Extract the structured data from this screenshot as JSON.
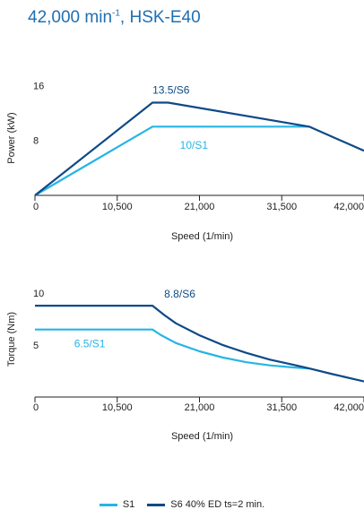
{
  "title": {
    "prefix": "42,000 min",
    "superscript": "-1",
    "suffix": ", HSK-E40"
  },
  "colors": {
    "title": "#1f6fb2",
    "s1": "#26b5e6",
    "s6": "#0d4a86",
    "axis": "#222222"
  },
  "legend": [
    {
      "key": "s1",
      "label": "S1"
    },
    {
      "key": "s6",
      "label": "S6 40% ED ts=2 min."
    }
  ],
  "chart_data": [
    {
      "type": "line",
      "ylabel": "Power (kW)",
      "xlabel": "Speed (1/min)",
      "xlim": [
        0,
        42000
      ],
      "ylim": [
        0,
        18
      ],
      "xticks": [
        0,
        10500,
        21000,
        31500,
        42000
      ],
      "xtick_labels": [
        "0",
        "10,500",
        "21,000",
        "31,500",
        "42,000"
      ],
      "yticks": [
        8,
        16
      ],
      "ytick_labels": [
        "8",
        "16"
      ],
      "grid": false,
      "series": [
        {
          "key": "s1",
          "points": [
            [
              0,
              0
            ],
            [
              15000,
              10
            ],
            [
              35000,
              10
            ]
          ],
          "annotation": {
            "text": "10/S1",
            "at": [
              18500,
              6.8
            ]
          }
        },
        {
          "key": "s6",
          "points": [
            [
              0,
              0
            ],
            [
              15000,
              13.5
            ],
            [
              17000,
              13.5
            ],
            [
              35000,
              10
            ],
            [
              42000,
              6.5
            ]
          ],
          "annotation": {
            "text": "13.5/S6",
            "at": [
              15000,
              14.8
            ]
          }
        }
      ]
    },
    {
      "type": "line",
      "ylabel": "Torque (Nm)",
      "xlabel": "Speed (1/min)",
      "xlim": [
        0,
        42000
      ],
      "ylim": [
        0,
        12
      ],
      "xticks": [
        0,
        10500,
        21000,
        31500,
        42000
      ],
      "xtick_labels": [
        "0",
        "10,500",
        "21,000",
        "31,500",
        "42,000"
      ],
      "yticks": [
        5,
        10
      ],
      "ytick_labels": [
        "5",
        "10"
      ],
      "grid": false,
      "series": [
        {
          "key": "s1",
          "points": [
            [
              0,
              6.5
            ],
            [
              15000,
              6.5
            ],
            [
              16000,
              6.0
            ],
            [
              18000,
              5.2
            ],
            [
              21000,
              4.4
            ],
            [
              24000,
              3.8
            ],
            [
              27000,
              3.35
            ],
            [
              30000,
              3.05
            ],
            [
              33000,
              2.85
            ],
            [
              35000,
              2.75
            ]
          ],
          "annotation": {
            "text": "6.5/S1",
            "at": [
              5000,
              4.8
            ]
          }
        },
        {
          "key": "s6",
          "points": [
            [
              0,
              8.8
            ],
            [
              15000,
              8.8
            ],
            [
              16500,
              7.9
            ],
            [
              18000,
              7.1
            ],
            [
              21000,
              5.95
            ],
            [
              24000,
              5.0
            ],
            [
              27000,
              4.25
            ],
            [
              30000,
              3.6
            ],
            [
              33000,
              3.1
            ],
            [
              35000,
              2.75
            ],
            [
              38000,
              2.2
            ],
            [
              42000,
              1.5
            ]
          ],
          "annotation": {
            "text": "8.8/S6",
            "at": [
              16500,
              9.6
            ]
          }
        }
      ]
    }
  ]
}
